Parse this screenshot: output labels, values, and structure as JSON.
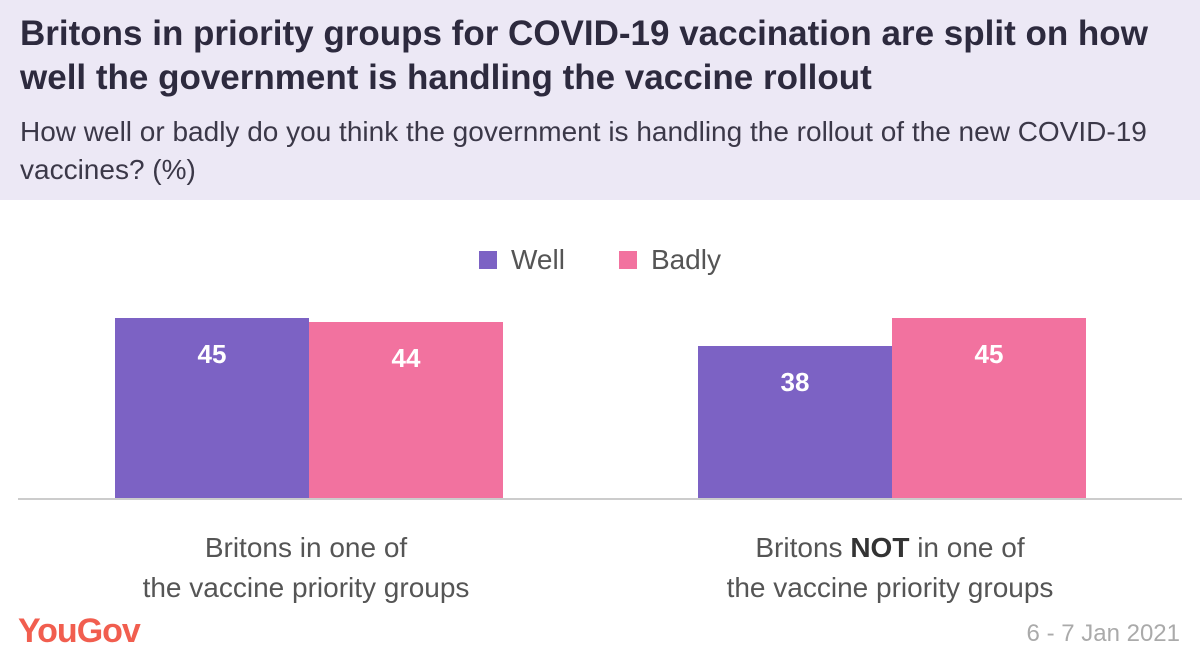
{
  "header": {
    "title": "Britons in priority groups for COVID-19 vaccination are split on how well the government is handling the vaccine rollout",
    "subtitle": "How well or badly do you think the government is handling the rollout of the new COVID-19 vaccines? (%)"
  },
  "chart_data": {
    "type": "bar",
    "categories": [
      "Britons in one of the vaccine priority groups",
      "Britons NOT in one of the vaccine priority groups"
    ],
    "category_lines": [
      {
        "pre": "Britons in one of",
        "bold": "",
        "post": "",
        "line2": "the vaccine priority groups"
      },
      {
        "pre": "Britons ",
        "bold": "NOT",
        "post": " in one of",
        "line2": "the vaccine priority groups"
      }
    ],
    "series": [
      {
        "name": "Well",
        "color": "#7c62c4",
        "values": [
          45,
          38
        ]
      },
      {
        "name": "Badly",
        "color": "#f2729f",
        "values": [
          44,
          45
        ]
      }
    ],
    "ylim": [
      0,
      45
    ],
    "legend": "top-center",
    "grid": false
  },
  "footer": {
    "logo": "YouGov",
    "date": "6 - 7 Jan 2021"
  },
  "colors": {
    "header_bg": "#ece8f5",
    "baseline": "#cccccc",
    "logo": "#f15e4f"
  }
}
